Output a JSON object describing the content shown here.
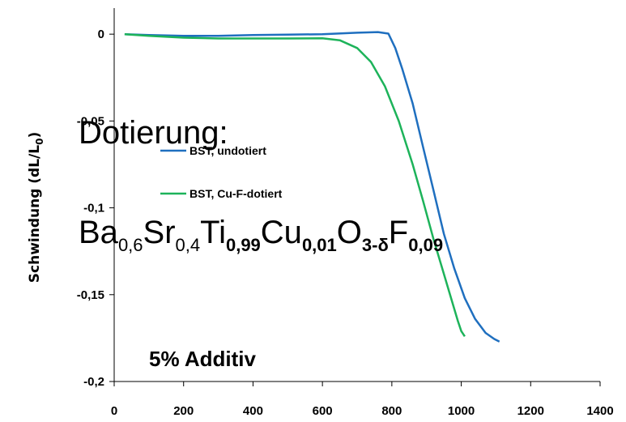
{
  "chart_data": {
    "type": "line",
    "ylabel": "Schwindung (dL/L",
    "ylabel_sub": "0",
    "ylabel_close": ")",
    "xlim": [
      0,
      1400
    ],
    "ylim": [
      -0.2,
      0.015
    ],
    "x_ticks": [
      0,
      200,
      400,
      600,
      800,
      1000,
      1200,
      1400
    ],
    "x_tick_labels": [
      "0",
      "200",
      "400",
      "600",
      "800",
      "1000",
      "1200",
      "1400"
    ],
    "y_ticks": [
      0,
      -0.05,
      -0.1,
      -0.15,
      -0.2
    ],
    "y_tick_labels": [
      "0",
      "-0,05",
      "-0,1",
      "-0,15",
      "-0,2"
    ],
    "grid": false,
    "legend_position": "upper-left",
    "series": [
      {
        "name": "BST, undotiert",
        "color": "#1f6fbf",
        "points": [
          [
            30,
            0
          ],
          [
            100,
            -0.0005
          ],
          [
            200,
            -0.001
          ],
          [
            300,
            -0.001
          ],
          [
            400,
            -0.0005
          ],
          [
            500,
            -0.0003
          ],
          [
            600,
            0
          ],
          [
            700,
            0.0008
          ],
          [
            760,
            0.0012
          ],
          [
            790,
            0.0003
          ],
          [
            810,
            -0.008
          ],
          [
            830,
            -0.02
          ],
          [
            860,
            -0.04
          ],
          [
            890,
            -0.065
          ],
          [
            920,
            -0.09
          ],
          [
            950,
            -0.115
          ],
          [
            980,
            -0.135
          ],
          [
            1010,
            -0.152
          ],
          [
            1040,
            -0.164
          ],
          [
            1070,
            -0.172
          ],
          [
            1095,
            -0.1755
          ],
          [
            1110,
            -0.177
          ]
        ]
      },
      {
        "name": "BST, Cu-F-dotiert",
        "color": "#1db35a",
        "points": [
          [
            30,
            0
          ],
          [
            100,
            -0.001
          ],
          [
            200,
            -0.002
          ],
          [
            300,
            -0.0025
          ],
          [
            400,
            -0.0025
          ],
          [
            500,
            -0.0025
          ],
          [
            600,
            -0.0024
          ],
          [
            650,
            -0.0035
          ],
          [
            700,
            -0.008
          ],
          [
            740,
            -0.016
          ],
          [
            780,
            -0.03
          ],
          [
            820,
            -0.05
          ],
          [
            860,
            -0.075
          ],
          [
            890,
            -0.096
          ],
          [
            920,
            -0.118
          ],
          [
            950,
            -0.138
          ],
          [
            975,
            -0.155
          ],
          [
            990,
            -0.165
          ],
          [
            1000,
            -0.171
          ],
          [
            1010,
            -0.174
          ]
        ]
      }
    ]
  },
  "overlay": {
    "dotierung_label": "Dotierung:",
    "formula_parts": [
      {
        "t": "Ba",
        "kind": "normal"
      },
      {
        "t": "0,6",
        "kind": "sub"
      },
      {
        "t": "Sr",
        "kind": "normal"
      },
      {
        "t": "0,4",
        "kind": "sub"
      },
      {
        "t": "Ti",
        "kind": "normal"
      },
      {
        "t": "0,99",
        "kind": "subbold"
      },
      {
        "t": "Cu",
        "kind": "normal"
      },
      {
        "t": "0,01",
        "kind": "subbold"
      },
      {
        "t": "O",
        "kind": "normal"
      },
      {
        "t": "3-δ",
        "kind": "subbold"
      },
      {
        "t": "F",
        "kind": "normal"
      },
      {
        "t": "0,09",
        "kind": "subbold"
      }
    ],
    "additiv_label": "5% Additiv"
  }
}
